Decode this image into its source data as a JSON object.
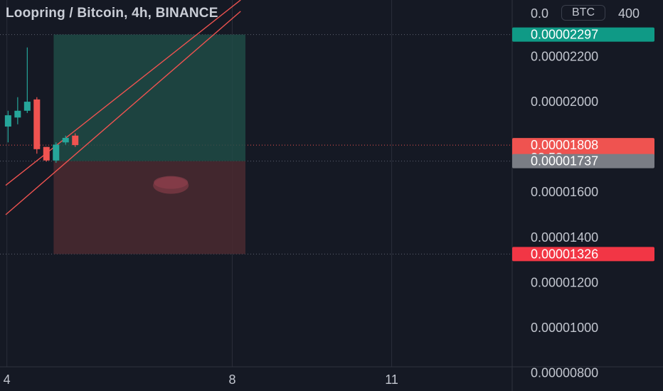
{
  "header": {
    "title": "Loopring / Bitcoin, 4h, BINANCE",
    "currency_label": "BTC"
  },
  "colors": {
    "background": "#151924",
    "up": "#26a69a",
    "down": "#ef5350",
    "profit_zone": "#1f4d47",
    "loss_zone": "#4a2a30",
    "trend_line": "#ef5350",
    "grid": "#2a2e39"
  },
  "chart_data": {
    "type": "candlestick",
    "symbol": "Loopring / Bitcoin",
    "interval": "4h",
    "exchange": "BINANCE",
    "ylim": [
      7.2e-06,
      2.45e-05
    ],
    "y_ticks": [
      "0.00000800",
      "0.00001000",
      "0.00001200",
      "0.00001400",
      "0.00001600",
      "0.00002000",
      "0.00002200"
    ],
    "y_tick_values": [
      8e-06,
      1e-05,
      1.2e-05,
      1.4e-05,
      1.6e-05,
      2e-05,
      2.2e-05
    ],
    "top_tick_partial": "0.0",
    "top_tick_partial_suffix": "400",
    "x_ticks": [
      {
        "label": "4",
        "t": 0.5
      },
      {
        "label": "8",
        "t": 94.5
      },
      {
        "label": "11",
        "t": 161
      }
    ],
    "candles": [
      {
        "t": 1,
        "open": 1.89e-05,
        "high": 1.96e-05,
        "low": 1.82e-05,
        "close": 1.94e-05
      },
      {
        "t": 5,
        "open": 1.93e-05,
        "high": 2.02e-05,
        "low": 1.9e-05,
        "close": 1.96e-05
      },
      {
        "t": 9,
        "open": 1.96e-05,
        "high": 2.24e-05,
        "low": 1.95e-05,
        "close": 2e-05
      },
      {
        "t": 13,
        "open": 2.01e-05,
        "high": 2.02e-05,
        "low": 1.77e-05,
        "close": 1.79e-05
      },
      {
        "t": 17,
        "open": 1.8e-05,
        "high": 1.8e-05,
        "low": 1.735e-05,
        "close": 1.74e-05
      },
      {
        "t": 21,
        "open": 1.74e-05,
        "high": 1.82e-05,
        "low": 1.73e-05,
        "close": 1.81e-05
      },
      {
        "t": 25,
        "open": 1.82e-05,
        "high": 1.85e-05,
        "low": 1.81e-05,
        "close": 1.84e-05
      },
      {
        "t": 29,
        "open": 1.85e-05,
        "high": 1.86e-05,
        "low": 1.8e-05,
        "close": 1.808e-05
      }
    ],
    "position": {
      "entry": 1.737e-05,
      "target": 2.297e-05,
      "stop": 1.326e-05,
      "t_start": 20,
      "t_end": 100
    },
    "trend_lines": [
      {
        "t1": 0,
        "p1": 1.63e-05,
        "t2": 98,
        "p2": 2.45e-05
      },
      {
        "t1": 0,
        "p1": 1.5e-05,
        "t2": 98,
        "p2": 2.4e-05
      }
    ],
    "price_labels": [
      {
        "name": "target-price-label",
        "value": "0.00002297",
        "price": 2.297e-05,
        "color": "#0f9a86"
      },
      {
        "name": "current-price-label",
        "value": "0.00001808",
        "sub": "38:58",
        "price": 1.808e-05,
        "color": "#ef5350"
      },
      {
        "name": "entry-price-label",
        "value": "0.00001737",
        "price": 1.737e-05,
        "color": "#7a7d85"
      },
      {
        "name": "stop-price-label",
        "value": "0.00001326",
        "price": 1.326e-05,
        "color": "#f23645"
      }
    ]
  }
}
